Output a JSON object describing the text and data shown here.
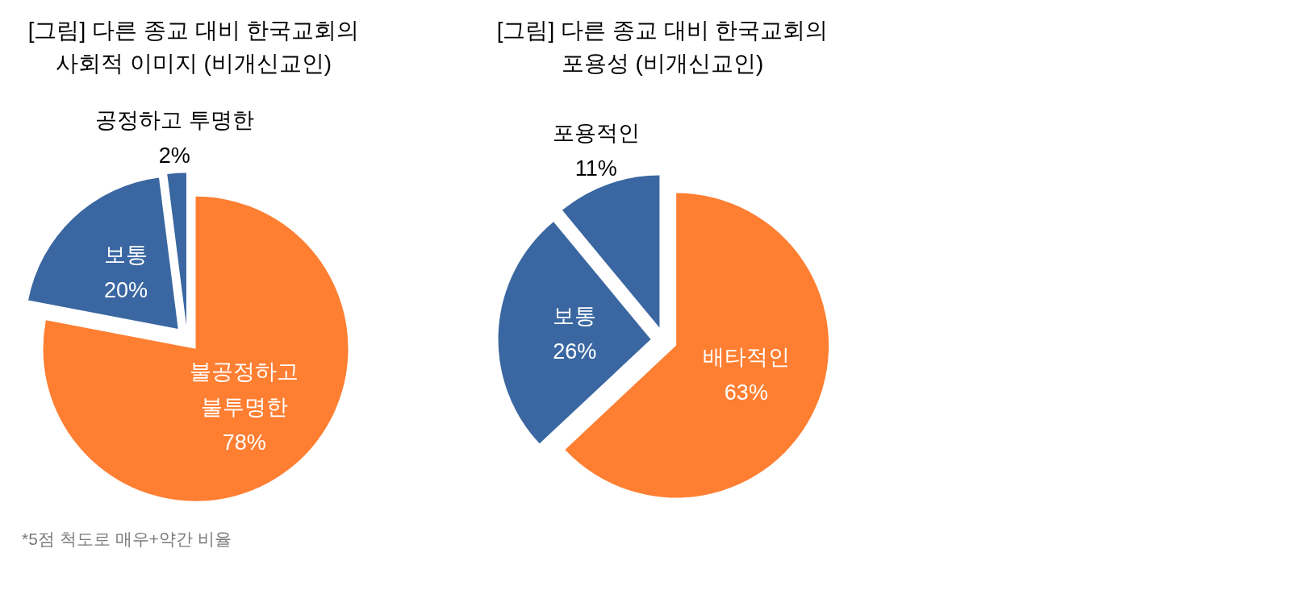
{
  "chart_data": [
    {
      "type": "pie",
      "title": "[그림] 다른 종교 대비 한국교회의\n사회적 이미지 (비개신교인)",
      "categories": [
        "불공정하고\n불투명한",
        "보통",
        "공정하고 투명한"
      ],
      "values": [
        78,
        20,
        2
      ],
      "value_labels": [
        "78%",
        "20%",
        "2%"
      ],
      "colors": [
        "#fe7f32",
        "#3a67a1",
        "#3a67a1"
      ],
      "annotations": [
        "*5점 척도로 매우+약간 비율"
      ]
    },
    {
      "type": "pie",
      "title": "[그림] 다른 종교 대비 한국교회의\n포용성 (비개신교인)",
      "categories": [
        "배타적인",
        "보통",
        "포용적인"
      ],
      "values": [
        63,
        26,
        11
      ],
      "value_labels": [
        "63%",
        "26%",
        "11%"
      ],
      "colors": [
        "#fe7f32",
        "#3a67a1",
        "#3a67a1"
      ]
    }
  ]
}
